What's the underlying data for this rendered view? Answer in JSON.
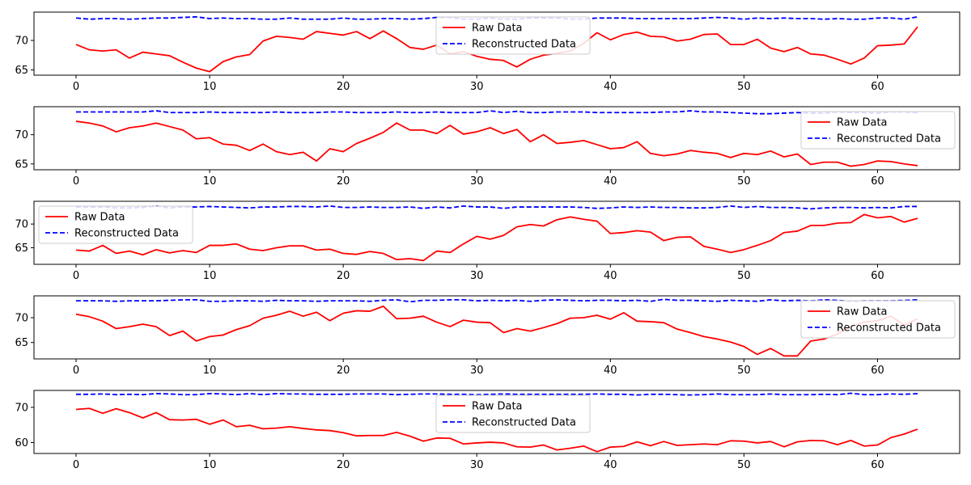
{
  "chart_data": [
    {
      "type": "line",
      "xlim": [
        -3.15,
        66.15
      ],
      "ylim": [
        64.1,
        74.8
      ],
      "yticks": [
        65,
        70
      ],
      "legend": "top-center",
      "series": [
        {
          "name": "Raw Data",
          "color": "#ff0000",
          "style": "solid",
          "y": [
            69.3,
            68.4,
            68.2,
            68.4,
            67.0,
            68.0,
            67.7,
            67.4,
            66.3,
            65.3,
            64.7,
            66.4,
            67.2,
            67.6,
            69.9,
            70.7,
            70.5,
            70.2,
            71.5,
            71.2,
            70.9,
            71.5,
            70.3,
            71.6,
            70.3,
            68.8,
            68.5,
            69.2,
            67.7,
            68.1,
            67.3,
            66.8,
            66.6,
            65.5,
            66.8,
            67.5,
            67.8,
            68.2,
            69.5,
            71.3,
            70.1,
            71.0,
            71.4,
            70.7,
            70.6,
            69.9,
            70.2,
            71.0,
            71.1,
            69.3,
            69.3,
            70.2,
            68.7,
            68.1,
            68.8,
            67.7,
            67.5,
            66.8,
            66.0,
            67.0,
            69.1,
            69.2,
            69.4,
            72.3
          ]
        },
        {
          "name": "Reconstructed Data",
          "color": "#0000ff",
          "style": "dashed",
          "y": [
            73.8,
            73.6,
            73.7,
            73.7,
            73.6,
            73.7,
            73.8,
            73.8,
            73.9,
            74.0,
            73.7,
            73.8,
            73.7,
            73.7,
            73.6,
            73.6,
            73.8,
            73.6,
            73.6,
            73.6,
            73.8,
            73.6,
            73.6,
            73.7,
            73.7,
            73.6,
            73.7,
            73.9,
            73.9,
            73.6,
            73.6,
            73.8,
            73.6,
            73.6,
            73.8,
            73.8,
            73.8,
            73.6,
            73.6,
            73.8,
            73.8,
            73.8,
            73.7,
            73.7,
            73.7,
            73.7,
            73.7,
            73.8,
            73.9,
            73.8,
            73.6,
            73.8,
            73.7,
            73.8,
            73.7,
            73.7,
            73.6,
            73.7,
            73.6,
            73.6,
            73.8,
            73.8,
            73.6,
            74.0
          ]
        }
      ]
    },
    {
      "type": "line",
      "xlim": [
        -3.15,
        66.15
      ],
      "ylim": [
        64.0,
        74.8
      ],
      "yticks": [
        65,
        70
      ],
      "legend": "top-right",
      "series": [
        {
          "name": "Raw Data",
          "color": "#ff0000",
          "style": "solid",
          "y": [
            72.3,
            72.0,
            71.5,
            70.5,
            71.2,
            71.5,
            72.0,
            71.4,
            70.8,
            69.3,
            69.5,
            68.4,
            68.2,
            67.3,
            68.4,
            67.1,
            66.6,
            67.0,
            65.5,
            67.6,
            67.1,
            68.5,
            69.4,
            70.4,
            72.0,
            70.8,
            70.8,
            70.2,
            71.6,
            70.1,
            70.5,
            71.2,
            70.2,
            70.9,
            68.8,
            70.0,
            68.5,
            68.7,
            69.0,
            68.3,
            67.6,
            67.8,
            68.8,
            66.8,
            66.4,
            66.7,
            67.3,
            67.0,
            66.8,
            66.1,
            66.8,
            66.6,
            67.2,
            66.2,
            66.7,
            64.9,
            65.3,
            65.3,
            64.6,
            64.9,
            65.5,
            65.4,
            65.0,
            64.7
          ]
        },
        {
          "name": "Reconstructed Data",
          "color": "#0000ff",
          "style": "dashed",
          "y": [
            73.9,
            73.9,
            73.9,
            73.9,
            73.9,
            73.9,
            74.1,
            73.8,
            73.8,
            73.8,
            73.9,
            73.8,
            73.8,
            73.8,
            73.8,
            73.9,
            73.8,
            73.8,
            73.8,
            73.9,
            73.9,
            73.8,
            73.8,
            73.8,
            73.9,
            73.8,
            73.8,
            73.9,
            73.8,
            73.8,
            73.8,
            74.1,
            73.8,
            74.0,
            73.8,
            73.8,
            73.9,
            73.9,
            73.9,
            73.8,
            73.8,
            73.8,
            73.8,
            73.8,
            73.9,
            73.9,
            74.1,
            73.9,
            73.9,
            73.8,
            73.7,
            73.6,
            73.6,
            73.7,
            73.8,
            73.7,
            73.7,
            73.9,
            73.8,
            73.8,
            73.7,
            73.9,
            73.9,
            73.8
          ]
        }
      ]
    },
    {
      "type": "line",
      "xlim": [
        -3.15,
        66.15
      ],
      "ylim": [
        61.5,
        74.8
      ],
      "yticks": [
        65,
        70
      ],
      "legend": "top-left",
      "series": [
        {
          "name": "Raw Data",
          "color": "#ff0000",
          "style": "solid",
          "y": [
            64.5,
            64.3,
            65.5,
            63.8,
            64.3,
            63.5,
            64.6,
            63.9,
            64.4,
            64.0,
            65.5,
            65.5,
            65.8,
            64.7,
            64.4,
            65.0,
            65.4,
            65.4,
            64.5,
            64.7,
            63.8,
            63.6,
            64.2,
            63.8,
            62.5,
            62.7,
            62.3,
            64.3,
            64.0,
            65.8,
            67.4,
            66.8,
            67.6,
            69.4,
            69.9,
            69.6,
            70.9,
            71.5,
            71.0,
            70.6,
            68.0,
            68.2,
            68.6,
            68.3,
            66.5,
            67.2,
            67.3,
            65.3,
            64.7,
            64.0,
            64.6,
            65.5,
            66.5,
            68.2,
            68.5,
            69.7,
            69.7,
            70.2,
            70.3,
            72.0,
            71.3,
            71.6,
            70.4,
            71.2
          ]
        },
        {
          "name": "Reconstructed Data",
          "color": "#0000ff",
          "style": "dashed",
          "y": [
            73.6,
            73.6,
            73.6,
            73.4,
            73.4,
            73.5,
            73.8,
            73.4,
            73.6,
            73.6,
            73.7,
            73.6,
            73.5,
            73.4,
            73.6,
            73.6,
            73.7,
            73.7,
            73.6,
            73.8,
            73.5,
            73.5,
            73.6,
            73.5,
            73.5,
            73.6,
            73.3,
            73.6,
            73.4,
            73.8,
            73.6,
            73.6,
            73.3,
            73.6,
            73.6,
            73.6,
            73.6,
            73.6,
            73.5,
            73.3,
            73.4,
            73.6,
            73.5,
            73.6,
            73.5,
            73.5,
            73.4,
            73.4,
            73.5,
            73.8,
            73.5,
            73.7,
            73.5,
            73.5,
            73.4,
            73.2,
            73.4,
            73.5,
            73.5,
            73.4,
            73.5,
            73.4,
            73.7,
            73.7
          ]
        }
      ]
    },
    {
      "type": "line",
      "xlim": [
        -3.15,
        66.15
      ],
      "ylim": [
        61.7,
        74.4
      ],
      "yticks": [
        65,
        70
      ],
      "legend": "top-right",
      "series": [
        {
          "name": "Raw Data",
          "color": "#ff0000",
          "style": "solid",
          "y": [
            70.7,
            70.2,
            69.3,
            67.8,
            68.2,
            68.7,
            68.2,
            66.4,
            67.3,
            65.3,
            66.2,
            66.5,
            67.6,
            68.4,
            69.9,
            70.5,
            71.3,
            70.3,
            71.1,
            69.4,
            70.9,
            71.4,
            71.3,
            72.3,
            69.8,
            69.9,
            70.3,
            69.1,
            68.2,
            69.5,
            69.1,
            69.0,
            67.0,
            67.8,
            67.3,
            68.0,
            68.8,
            69.9,
            70.0,
            70.5,
            69.7,
            71.0,
            69.3,
            69.2,
            69.0,
            67.7,
            67.0,
            66.2,
            65.7,
            65.1,
            64.2,
            62.6,
            63.8,
            62.3,
            62.3,
            65.3,
            65.7,
            66.7,
            68.2,
            69.1,
            69.4,
            70.3,
            68.5,
            69.8
          ]
        },
        {
          "name": "Reconstructed Data",
          "color": "#0000ff",
          "style": "dashed",
          "y": [
            73.4,
            73.4,
            73.4,
            73.3,
            73.4,
            73.4,
            73.4,
            73.5,
            73.6,
            73.6,
            73.3,
            73.3,
            73.4,
            73.4,
            73.3,
            73.5,
            73.4,
            73.4,
            73.3,
            73.4,
            73.4,
            73.4,
            73.3,
            73.5,
            73.6,
            73.2,
            73.5,
            73.5,
            73.6,
            73.6,
            73.4,
            73.5,
            73.4,
            73.5,
            73.3,
            73.5,
            73.6,
            73.5,
            73.4,
            73.5,
            73.5,
            73.4,
            73.5,
            73.3,
            73.7,
            73.5,
            73.5,
            73.4,
            73.3,
            73.5,
            73.4,
            73.3,
            73.6,
            73.4,
            73.5,
            73.4,
            73.6,
            73.5,
            73.3,
            73.4,
            73.4,
            73.4,
            73.5,
            73.6
          ]
        }
      ]
    },
    {
      "type": "line",
      "xlim": [
        -3.15,
        66.15
      ],
      "ylim": [
        56.9,
        74.8
      ],
      "yticks": [
        60,
        70
      ],
      "legend": "top-center",
      "series": [
        {
          "name": "Raw Data",
          "color": "#ff0000",
          "style": "solid",
          "y": [
            69.4,
            69.7,
            68.3,
            69.6,
            68.5,
            67.0,
            68.5,
            66.5,
            66.4,
            66.6,
            65.2,
            66.4,
            64.5,
            64.9,
            63.9,
            64.1,
            64.5,
            64.0,
            63.6,
            63.4,
            62.8,
            61.9,
            62.0,
            62.0,
            62.9,
            61.8,
            60.4,
            61.3,
            61.2,
            59.6,
            59.9,
            60.1,
            59.9,
            58.8,
            58.7,
            59.3,
            57.9,
            58.4,
            59.0,
            57.4,
            58.7,
            58.9,
            60.2,
            59.1,
            60.3,
            59.2,
            59.4,
            59.6,
            59.4,
            60.5,
            60.4,
            59.9,
            60.3,
            58.8,
            60.2,
            60.6,
            60.5,
            59.4,
            60.6,
            59.0,
            59.3,
            61.4,
            62.4,
            63.8
          ]
        },
        {
          "name": "Reconstructed Data",
          "color": "#0000ff",
          "style": "dashed",
          "y": [
            73.7,
            73.7,
            73.8,
            73.6,
            73.7,
            73.6,
            73.9,
            73.8,
            73.6,
            73.6,
            73.9,
            73.8,
            73.6,
            73.9,
            73.6,
            73.9,
            73.8,
            73.8,
            73.7,
            73.7,
            73.7,
            73.8,
            73.8,
            73.8,
            73.6,
            73.7,
            73.8,
            73.8,
            73.7,
            73.7,
            73.6,
            73.7,
            73.8,
            73.7,
            73.7,
            73.7,
            73.7,
            73.7,
            73.7,
            73.8,
            73.7,
            73.7,
            73.5,
            73.7,
            73.7,
            73.6,
            73.5,
            73.6,
            73.8,
            73.6,
            73.6,
            73.6,
            73.8,
            73.6,
            73.6,
            73.6,
            73.7,
            73.6,
            74.0,
            73.6,
            73.6,
            73.8,
            73.7,
            73.9
          ]
        }
      ]
    }
  ],
  "xticks": [
    0,
    10,
    20,
    30,
    40,
    50,
    60
  ]
}
